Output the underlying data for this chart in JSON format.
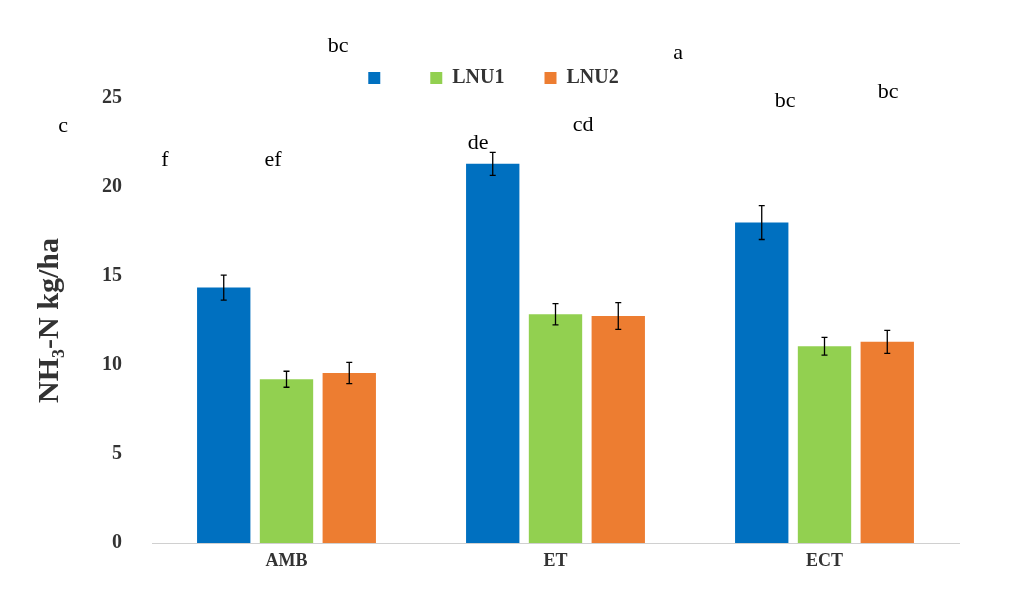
{
  "chart_data": {
    "type": "bar",
    "ylabel": "NH₃-N kg/ha",
    "categories": [
      "AMB",
      "ET",
      "ECT"
    ],
    "series": [
      {
        "color": "#0070c0",
        "values": [
          14.35,
          21.3,
          18.0
        ],
        "errors": [
          0.7,
          0.65,
          0.95
        ]
      },
      {
        "name": "LNU1",
        "color": "#92d050",
        "values": [
          9.2,
          12.85,
          11.05
        ],
        "errors": [
          0.45,
          0.6,
          0.5
        ]
      },
      {
        "name": "LNU2",
        "color": "#ed7d31",
        "values": [
          9.55,
          12.75,
          11.3
        ],
        "errors": [
          0.6,
          0.75,
          0.65
        ]
      }
    ],
    "ylim": [
      0,
      25
    ],
    "yticks": [
      0,
      5,
      10,
      15,
      20,
      25
    ],
    "grid": false,
    "legend": "top",
    "annotations": [
      "c",
      "f",
      "ef",
      "bc",
      "de",
      "cd",
      "a",
      "bc",
      "bc"
    ]
  }
}
